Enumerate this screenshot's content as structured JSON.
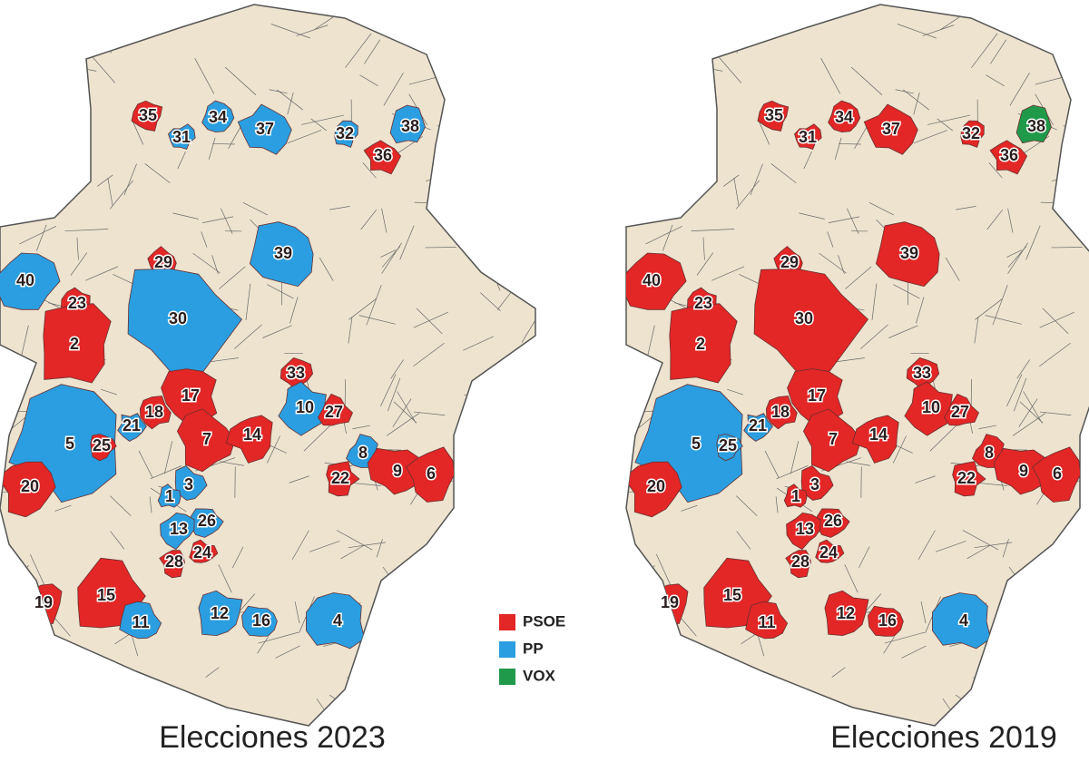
{
  "legend": [
    {
      "label": "PSOE",
      "color": "#e32626"
    },
    {
      "label": "PP",
      "color": "#2a9ee0"
    },
    {
      "label": "VOX",
      "color": "#1f9a4a"
    }
  ],
  "maps": [
    {
      "title": "Elecciones 2023",
      "regions": [
        {
          "label": "35",
          "party": "PSOE"
        },
        {
          "label": "31",
          "party": "PP"
        },
        {
          "label": "34",
          "party": "PP"
        },
        {
          "label": "37",
          "party": "PP"
        },
        {
          "label": "32",
          "party": "PP"
        },
        {
          "label": "38",
          "party": "PP"
        },
        {
          "label": "36",
          "party": "PSOE"
        },
        {
          "label": "39",
          "party": "PP"
        },
        {
          "label": "29",
          "party": "PSOE"
        },
        {
          "label": "40",
          "party": "PP"
        },
        {
          "label": "23",
          "party": "PSOE"
        },
        {
          "label": "30",
          "party": "PP"
        },
        {
          "label": "2",
          "party": "PSOE"
        },
        {
          "label": "33",
          "party": "PSOE"
        },
        {
          "label": "17",
          "party": "PSOE"
        },
        {
          "label": "10",
          "party": "PP"
        },
        {
          "label": "27",
          "party": "PSOE"
        },
        {
          "label": "18",
          "party": "PSOE"
        },
        {
          "label": "21",
          "party": "PP"
        },
        {
          "label": "5",
          "party": "PP"
        },
        {
          "label": "25",
          "party": "PSOE"
        },
        {
          "label": "7",
          "party": "PSOE"
        },
        {
          "label": "14",
          "party": "PSOE"
        },
        {
          "label": "8",
          "party": "PP"
        },
        {
          "label": "9",
          "party": "PSOE"
        },
        {
          "label": "6",
          "party": "PSOE"
        },
        {
          "label": "22",
          "party": "PSOE"
        },
        {
          "label": "20",
          "party": "PSOE"
        },
        {
          "label": "3",
          "party": "PP"
        },
        {
          "label": "1",
          "party": "PP"
        },
        {
          "label": "26",
          "party": "PP"
        },
        {
          "label": "13",
          "party": "PP"
        },
        {
          "label": "28",
          "party": "PSOE"
        },
        {
          "label": "24",
          "party": "PSOE"
        },
        {
          "label": "19",
          "party": "PSOE"
        },
        {
          "label": "15",
          "party": "PSOE"
        },
        {
          "label": "11",
          "party": "PP"
        },
        {
          "label": "12",
          "party": "PP"
        },
        {
          "label": "16",
          "party": "PP"
        },
        {
          "label": "4",
          "party": "PP"
        }
      ]
    },
    {
      "title": "Elecciones 2019",
      "regions": [
        {
          "label": "35",
          "party": "PSOE"
        },
        {
          "label": "31",
          "party": "PSOE"
        },
        {
          "label": "34",
          "party": "PSOE"
        },
        {
          "label": "37",
          "party": "PSOE"
        },
        {
          "label": "32",
          "party": "PSOE"
        },
        {
          "label": "38",
          "party": "VOX"
        },
        {
          "label": "36",
          "party": "PSOE"
        },
        {
          "label": "39",
          "party": "PSOE"
        },
        {
          "label": "29",
          "party": "PSOE"
        },
        {
          "label": "40",
          "party": "PSOE"
        },
        {
          "label": "23",
          "party": "PSOE"
        },
        {
          "label": "30",
          "party": "PSOE"
        },
        {
          "label": "2",
          "party": "PSOE"
        },
        {
          "label": "33",
          "party": "PSOE"
        },
        {
          "label": "17",
          "party": "PSOE"
        },
        {
          "label": "10",
          "party": "PSOE"
        },
        {
          "label": "27",
          "party": "PSOE"
        },
        {
          "label": "18",
          "party": "PSOE"
        },
        {
          "label": "21",
          "party": "PP"
        },
        {
          "label": "5",
          "party": "PP"
        },
        {
          "label": "25",
          "party": "PP"
        },
        {
          "label": "7",
          "party": "PSOE"
        },
        {
          "label": "14",
          "party": "PSOE"
        },
        {
          "label": "8",
          "party": "PSOE"
        },
        {
          "label": "9",
          "party": "PSOE"
        },
        {
          "label": "6",
          "party": "PSOE"
        },
        {
          "label": "22",
          "party": "PSOE"
        },
        {
          "label": "20",
          "party": "PSOE"
        },
        {
          "label": "3",
          "party": "PSOE"
        },
        {
          "label": "1",
          "party": "PSOE"
        },
        {
          "label": "26",
          "party": "PSOE"
        },
        {
          "label": "13",
          "party": "PSOE"
        },
        {
          "label": "28",
          "party": "PSOE"
        },
        {
          "label": "24",
          "party": "PSOE"
        },
        {
          "label": "19",
          "party": "PSOE"
        },
        {
          "label": "15",
          "party": "PSOE"
        },
        {
          "label": "11",
          "party": "PSOE"
        },
        {
          "label": "12",
          "party": "PSOE"
        },
        {
          "label": "16",
          "party": "PSOE"
        },
        {
          "label": "4",
          "party": "PP"
        }
      ]
    }
  ]
}
